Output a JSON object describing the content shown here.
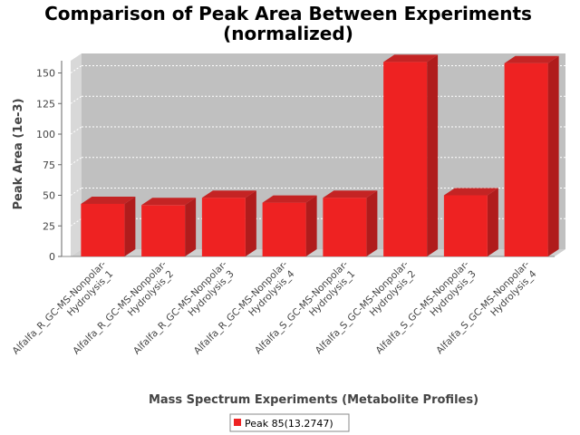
{
  "chart_data": {
    "type": "bar",
    "title": "Comparison of Peak Area Between Experiments",
    "subtitle": "(normalized)",
    "xlabel": "Mass Spectrum Experiments (Metabolite Profiles)",
    "ylabel": "Peak Area (1e-3)",
    "ylim": [
      0,
      160
    ],
    "yticks": [
      0,
      25,
      50,
      75,
      100,
      125,
      150
    ],
    "categories": [
      [
        "Alfalfa_R_GC-MS-Nonpolar-",
        "Hydrolysis_1"
      ],
      [
        "Alfalfa_R_GC-MS-Nonpolar-",
        "Hydrolysis_2"
      ],
      [
        "Alfalfa_R_GC-MS-Nonpolar-",
        "Hydrolysis_3"
      ],
      [
        "Alfalfa_R_GC-MS-Nonpolar-",
        "Hydrolysis_4"
      ],
      [
        "Alfalfa_S_GC-MS-Nonpolar-",
        "Hydrolysis_1"
      ],
      [
        "Alfalfa_S_GC-MS-Nonpolar-",
        "Hydrolysis_2"
      ],
      [
        "Alfalfa_S_GC-MS-Nonpolar-",
        "Hydrolysis_3"
      ],
      [
        "Alfalfa_S_GC-MS-Nonpolar-",
        "Hydrolysis_4"
      ]
    ],
    "series": [
      {
        "name": "Peak 85(13.2747)",
        "values": [
          43,
          42,
          48,
          44,
          48,
          159,
          50,
          158
        ],
        "color": "#ee2222"
      }
    ],
    "grid": true,
    "legend": "bottom-center",
    "style": "3d"
  }
}
